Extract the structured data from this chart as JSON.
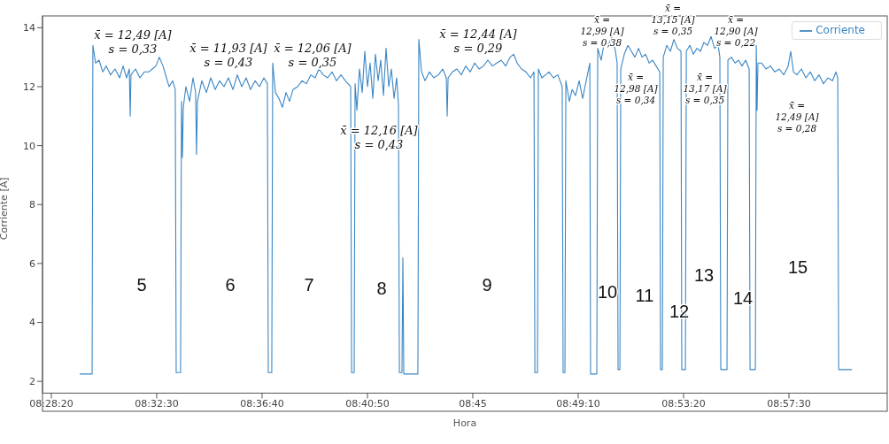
{
  "chart_data": {
    "type": "line",
    "xlabel": "Hora",
    "ylabel": "Corriente [A]",
    "legend": "top right",
    "grid": false,
    "marker": "none",
    "line_style": "solid",
    "xlim": [
      8.4664,
      9.0231
    ],
    "ylim": [
      1.6,
      14.4
    ],
    "xticks": [
      {
        "value": 8.47222,
        "label": "08:28:20"
      },
      {
        "value": 8.54167,
        "label": "08:32:30"
      },
      {
        "value": 8.61111,
        "label": "08:36:40"
      },
      {
        "value": 8.68056,
        "label": "08:40:50"
      },
      {
        "value": 8.75,
        "label": "08:45"
      },
      {
        "value": 8.81944,
        "label": "08:49:10"
      },
      {
        "value": 8.88889,
        "label": "08:53:20"
      },
      {
        "value": 8.95833,
        "label": "08:57:30"
      }
    ],
    "yticks": [
      2,
      4,
      6,
      8,
      10,
      12,
      14
    ],
    "series": [
      {
        "name": "Corriente",
        "color": "#3a86c4",
        "x": [
          8.4909,
          8.4991,
          8.4996,
          8.5014,
          8.5037,
          8.5061,
          8.5084,
          8.5113,
          8.5142,
          8.5172,
          8.5195,
          8.5218,
          8.5236,
          8.5242,
          8.5247,
          8.5277,
          8.5306,
          8.5335,
          8.5364,
          8.5388,
          8.5411,
          8.5434,
          8.5458,
          8.5481,
          8.5498,
          8.5522,
          8.5539,
          8.5545,
          8.5574,
          8.558,
          8.5586,
          8.5592,
          8.5609,
          8.5633,
          8.5656,
          8.5673,
          8.5679,
          8.5685,
          8.5714,
          8.5744,
          8.5773,
          8.5802,
          8.5831,
          8.586,
          8.5889,
          8.5919,
          8.5948,
          8.5977,
          8.6006,
          8.6035,
          8.6065,
          8.6094,
          8.6123,
          8.6146,
          8.6152,
          8.6175,
          8.6181,
          8.6199,
          8.6222,
          8.6245,
          8.6269,
          8.6292,
          8.6315,
          8.6345,
          8.6374,
          8.6403,
          8.6432,
          8.6461,
          8.6485,
          8.6514,
          8.6543,
          8.6572,
          8.6601,
          8.6631,
          8.666,
          8.6695,
          8.6701,
          8.6718,
          8.6724,
          8.6736,
          8.6753,
          8.6771,
          8.6788,
          8.6806,
          8.6823,
          8.6841,
          8.6858,
          8.6876,
          8.6893,
          8.6911,
          8.6928,
          8.6946,
          8.6963,
          8.6981,
          8.6998,
          8.701,
          8.7016,
          8.7033,
          8.7039,
          8.7045,
          8.7138,
          8.7144,
          8.7162,
          8.7185,
          8.7214,
          8.7243,
          8.7273,
          8.7302,
          8.7325,
          8.7331,
          8.7337,
          8.7366,
          8.7395,
          8.7424,
          8.7453,
          8.7483,
          8.7512,
          8.7541,
          8.757,
          8.7599,
          8.7629,
          8.7658,
          8.7687,
          8.7716,
          8.7745,
          8.7769,
          8.7792,
          8.7821,
          8.785,
          8.788,
          8.7903,
          8.7909,
          8.7926,
          8.7932,
          8.7955,
          8.7979,
          8.8002,
          8.8031,
          8.806,
          8.8089,
          8.8095,
          8.8107,
          8.8113,
          8.8136,
          8.8154,
          8.8177,
          8.8201,
          8.8224,
          8.8247,
          8.8271,
          8.8276,
          8.8317,
          8.8323,
          8.8346,
          8.837,
          8.8393,
          8.8416,
          8.844,
          8.8451,
          8.8457,
          8.8469,
          8.8475,
          8.8498,
          8.8522,
          8.8545,
          8.8568,
          8.8592,
          8.8615,
          8.8638,
          8.8662,
          8.8685,
          8.8708,
          8.8732,
          8.8737,
          8.8749,
          8.8755,
          8.8778,
          8.8802,
          8.8825,
          8.8848,
          8.8872,
          8.8877,
          8.8901,
          8.8907,
          8.893,
          8.8953,
          8.8977,
          8.9,
          8.9023,
          8.9047,
          8.907,
          8.9093,
          8.9117,
          8.9128,
          8.9134,
          8.9175,
          8.9181,
          8.9204,
          8.9228,
          8.9251,
          8.9274,
          8.9298,
          8.9321,
          8.9327,
          8.9362,
          8.9368,
          8.9373,
          8.9379,
          8.9403,
          8.9432,
          8.9461,
          8.949,
          8.9519,
          8.9549,
          8.9578,
          8.9595,
          8.9613,
          8.9636,
          8.9665,
          8.9695,
          8.9724,
          8.9753,
          8.9782,
          8.9811,
          8.984,
          8.987,
          8.9893,
          8.9905,
          8.9911,
          8.9998
        ],
        "values": [
          2.25,
          2.25,
          13.4,
          12.8,
          12.9,
          12.5,
          12.7,
          12.4,
          12.6,
          12.3,
          12.7,
          12.3,
          12.6,
          11.0,
          12.4,
          12.6,
          12.3,
          12.5,
          12.5,
          12.6,
          12.7,
          13.0,
          12.7,
          12.3,
          12.0,
          12.2,
          11.9,
          2.3,
          2.3,
          11.5,
          9.6,
          11.3,
          12.0,
          11.5,
          12.3,
          11.8,
          9.7,
          11.5,
          12.2,
          11.8,
          12.3,
          11.9,
          12.2,
          12.0,
          12.3,
          11.9,
          12.4,
          12.0,
          12.3,
          11.9,
          12.2,
          12.0,
          12.3,
          12.1,
          2.3,
          2.3,
          12.8,
          11.8,
          11.6,
          11.3,
          11.8,
          11.5,
          11.9,
          12.0,
          12.2,
          12.1,
          12.4,
          12.3,
          12.6,
          12.4,
          12.3,
          12.5,
          12.2,
          12.4,
          12.2,
          12.0,
          2.3,
          2.3,
          12.1,
          11.2,
          12.6,
          11.8,
          13.2,
          12.0,
          12.8,
          11.6,
          13.1,
          12.2,
          12.9,
          11.7,
          13.3,
          12.0,
          12.6,
          11.6,
          12.3,
          11.4,
          2.3,
          2.3,
          6.2,
          2.25,
          2.25,
          13.6,
          12.5,
          12.2,
          12.5,
          12.3,
          12.4,
          12.6,
          12.3,
          11.0,
          12.3,
          12.5,
          12.6,
          12.4,
          12.7,
          12.5,
          12.8,
          12.6,
          12.7,
          12.9,
          12.7,
          12.8,
          12.9,
          12.7,
          13.0,
          13.1,
          12.8,
          12.6,
          12.5,
          12.3,
          12.5,
          2.3,
          2.3,
          12.6,
          12.3,
          12.4,
          12.5,
          12.3,
          12.4,
          12.0,
          2.3,
          2.3,
          12.2,
          11.5,
          11.9,
          11.7,
          12.2,
          11.6,
          12.2,
          12.8,
          2.25,
          2.25,
          13.3,
          12.9,
          13.6,
          13.4,
          13.7,
          13.2,
          12.8,
          2.4,
          2.4,
          12.6,
          13.1,
          13.4,
          13.2,
          13.0,
          13.3,
          13.0,
          13.1,
          12.8,
          12.9,
          12.7,
          12.5,
          2.4,
          2.4,
          13.0,
          13.4,
          13.2,
          13.6,
          13.3,
          13.2,
          2.4,
          2.4,
          13.2,
          13.4,
          13.1,
          13.3,
          13.2,
          13.5,
          13.4,
          13.7,
          13.3,
          13.4,
          13.0,
          2.4,
          2.4,
          12.9,
          13.0,
          12.8,
          12.9,
          12.7,
          12.9,
          12.6,
          2.4,
          2.4,
          13.4,
          11.2,
          12.8,
          12.8,
          12.6,
          12.7,
          12.5,
          12.6,
          12.4,
          12.7,
          13.2,
          12.5,
          12.4,
          12.6,
          12.3,
          12.5,
          12.2,
          12.4,
          12.1,
          12.3,
          12.2,
          12.5,
          12.3,
          2.4,
          2.4
        ]
      }
    ],
    "annotations": [
      "x̄ = 12,49 [A]\ns = 0,33",
      "x̄ = 11,93 [A]\ns = 0,43",
      "x̄ = 12,06 [A]\ns = 0,35",
      "x̄ = 12,16 [A]\ns = 0,43",
      "x̄ = 12,44 [A]\ns = 0,29",
      "x̄ =\n12,99 [A]\ns = 0,38",
      "x̄ =\n12,98 [A]\ns = 0,34",
      "x̄ =\n13,15 [A]\ns = 0,35",
      "x̄ =\n13,17 [A]\ns = 0,35",
      "x̄ =\n12,90 [A]\ns = 0,22",
      "x̄ =\n12,49 [A]\ns = 0,28",
      "5",
      "6",
      "7",
      "8",
      "9",
      "10",
      "11",
      "12",
      "13",
      "14",
      "15"
    ]
  }
}
